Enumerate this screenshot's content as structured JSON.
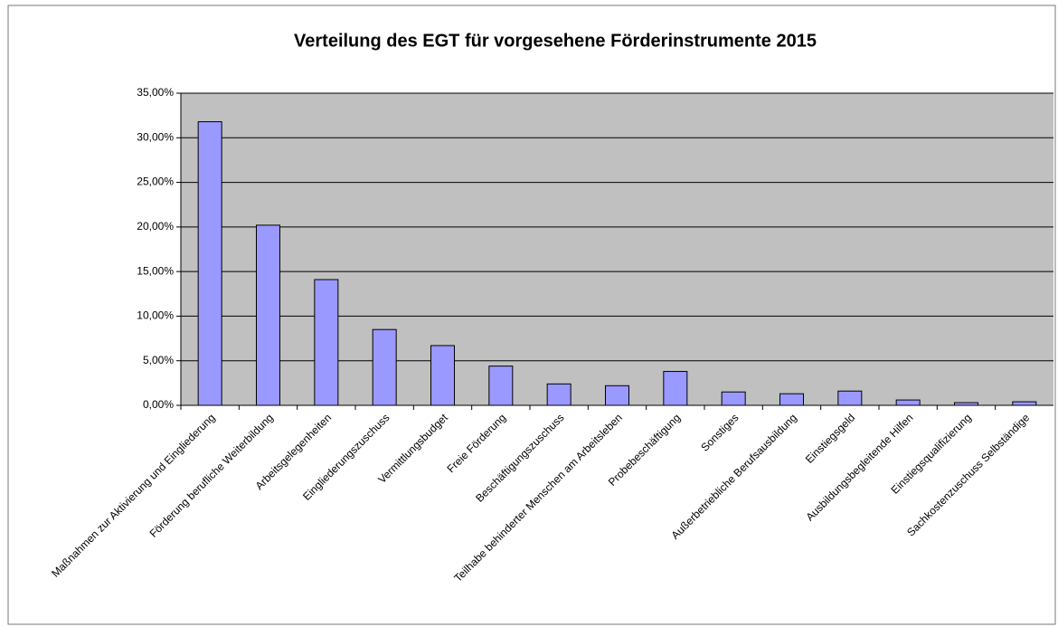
{
  "chart_data": {
    "type": "bar",
    "title": "Verteilung des EGT für vorgesehene Förderinstrumente 2015",
    "categories": [
      "Maßnahmen zur Aktivierung und Eingliederung",
      "Förderung berufliche Weiterbildung",
      "Arbeitsgelegenheiten",
      "Eingliederungszuschuss",
      "Vermittlungsbudget",
      "Freie Förderung",
      "Beschäftigungszuschuss",
      "Teilhabe behinderter Menschen am Arbeitsleben",
      "Probebeschäftigung",
      "Sonstiges",
      "Außerbetriebliche Berufsausbildung",
      "Einstiegsgeld",
      "Ausbildungsbegleitende Hilfen",
      "Einstiegsqualifizierung",
      "Sachkostenzuschuss Selbständige"
    ],
    "values": [
      31.8,
      20.2,
      14.1,
      8.5,
      6.7,
      4.4,
      2.4,
      2.2,
      3.8,
      1.5,
      1.3,
      1.6,
      0.6,
      0.3,
      0.4
    ],
    "color": "#9999ff",
    "ylim": [
      0,
      35
    ],
    "yticks": [
      {
        "value": 0,
        "label": "0,00%"
      },
      {
        "value": 5,
        "label": "5,00%"
      },
      {
        "value": 10,
        "label": "10,00%"
      },
      {
        "value": 15,
        "label": "15,00%"
      },
      {
        "value": 20,
        "label": "20,00%"
      },
      {
        "value": 25,
        "label": "25,00%"
      },
      {
        "value": 30,
        "label": "30,00%"
      },
      {
        "value": 35,
        "label": "35,00%"
      }
    ],
    "grid": true
  }
}
